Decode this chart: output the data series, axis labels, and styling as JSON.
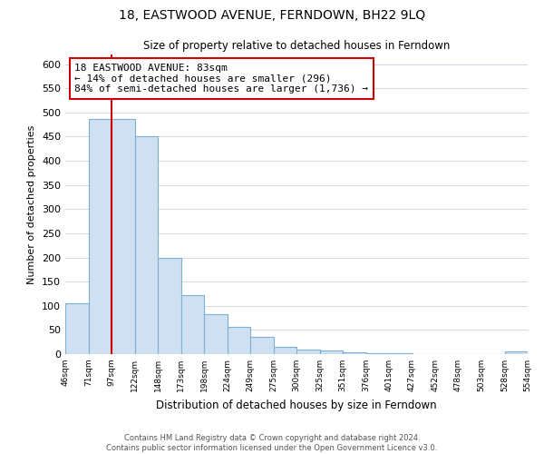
{
  "title": "18, EASTWOOD AVENUE, FERNDOWN, BH22 9LQ",
  "subtitle": "Size of property relative to detached houses in Ferndown",
  "xlabel": "Distribution of detached houses by size in Ferndown",
  "ylabel": "Number of detached properties",
  "bar_values": [
    105,
    487,
    487,
    450,
    200,
    122,
    83,
    57,
    35,
    15,
    10,
    8,
    3,
    2,
    1,
    0,
    0,
    0,
    0,
    5
  ],
  "bar_labels": [
    "46sqm",
    "71sqm",
    "97sqm",
    "122sqm",
    "148sqm",
    "173sqm",
    "198sqm",
    "224sqm",
    "249sqm",
    "275sqm",
    "300sqm",
    "325sqm",
    "351sqm",
    "376sqm",
    "401sqm",
    "427sqm",
    "452sqm",
    "478sqm",
    "503sqm",
    "528sqm",
    "554sqm"
  ],
  "bar_color": "#cfe0f1",
  "bar_edge_color": "#7db0d4",
  "vline_x": 1.5,
  "vline_color": "#cc0000",
  "ylim": [
    0,
    620
  ],
  "yticks": [
    0,
    50,
    100,
    150,
    200,
    250,
    300,
    350,
    400,
    450,
    500,
    550,
    600
  ],
  "annotation_title": "18 EASTWOOD AVENUE: 83sqm",
  "annotation_line1": "← 14% of detached houses are smaller (296)",
  "annotation_line2": "84% of semi-detached houses are larger (1,736) →",
  "footer1": "Contains HM Land Registry data © Crown copyright and database right 2024.",
  "footer2": "Contains public sector information licensed under the Open Government Licence v3.0.",
  "background_color": "#ffffff",
  "grid_color": "#cdd8e3"
}
